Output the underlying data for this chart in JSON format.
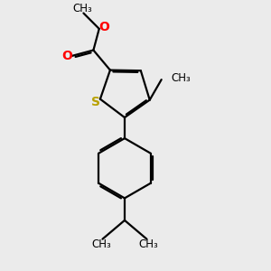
{
  "bg_color": "#ebebeb",
  "line_color": "#000000",
  "sulfur_color": "#b8a000",
  "oxygen_color": "#ff0000",
  "line_width": 1.6,
  "dbo": 0.055,
  "fig_size": [
    3.0,
    3.0
  ],
  "dpi": 100,
  "xlim": [
    0,
    10
  ],
  "ylim": [
    0,
    10
  ]
}
